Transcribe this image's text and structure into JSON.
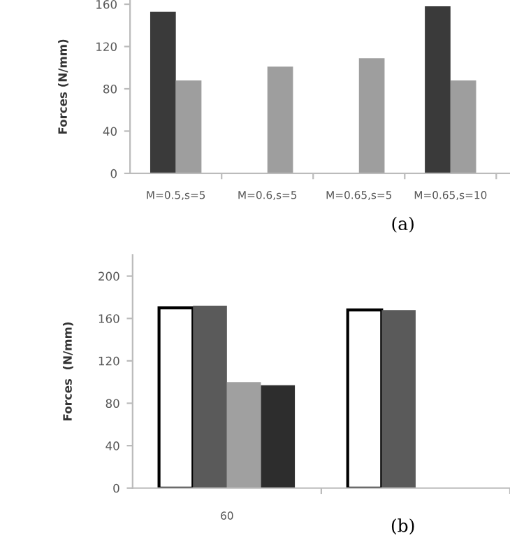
{
  "chart_data": [
    {
      "type": "bar",
      "ylabel": "Forces (N/mm)",
      "categories": [
        "M=0.5,s=5",
        "M=0.6,s=5",
        "M=0.65,s=5",
        "M=0.65,s=10"
      ],
      "series": [
        {
          "color": "#3a3a3a",
          "values": [
            153,
            null,
            null,
            158
          ]
        },
        {
          "color": "#9e9e9e",
          "values": [
            88,
            101,
            109,
            88
          ]
        }
      ],
      "ylim": [
        0,
        164
      ],
      "yticks": [
        0,
        40,
        80,
        120,
        160
      ],
      "grid": false,
      "legend": false,
      "annotations": [
        "(a)"
      ]
    },
    {
      "type": "bar",
      "ylabel": "Forces  (N/mm)",
      "categories": [
        "60",
        null
      ],
      "series": [
        {
          "color": "#ffffff",
          "values": [
            170,
            168
          ]
        },
        {
          "color": "#5a5a5a",
          "values": [
            172,
            168
          ]
        },
        {
          "color": "#a0a0a0",
          "values": [
            100,
            null
          ]
        },
        {
          "color": "#2d2d2d",
          "values": [
            97,
            null
          ]
        }
      ],
      "ylim": [
        0,
        220
      ],
      "yticks": [
        0,
        40,
        80,
        120,
        160,
        200
      ],
      "grid": false,
      "legend": false,
      "annotations": [
        "(b)"
      ]
    }
  ]
}
